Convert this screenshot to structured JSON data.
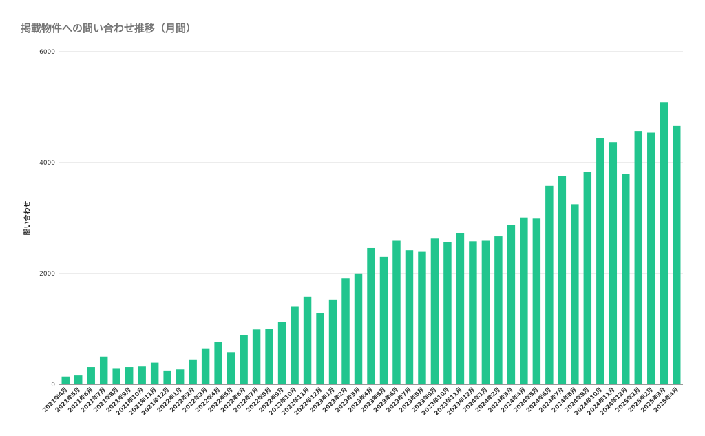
{
  "chart_data": {
    "type": "bar",
    "title": "掲載物件への問い合わせ推移（月間）",
    "xlabel": "",
    "ylabel": "問い合わせ",
    "ylim": [
      0,
      6000
    ],
    "yticks": [
      0,
      2000,
      4000,
      6000
    ],
    "grid": true,
    "bar_color": "#21c58e",
    "categories": [
      "2021年4月",
      "2021年5月",
      "2021年6月",
      "2021年7月",
      "2021年8月",
      "2021年9月",
      "2021年10月",
      "2021年11月",
      "2021年12月",
      "2022年1月",
      "2022年2月",
      "2022年3月",
      "2022年4月",
      "2022年5月",
      "2022年6月",
      "2022年7月",
      "2022年8月",
      "2022年9月",
      "2022年10月",
      "2022年11月",
      "2022年12月",
      "2023年1月",
      "2023年2月",
      "2023年3月",
      "2023年4月",
      "2023年5月",
      "2023年6月",
      "2023年7月",
      "2023年8月",
      "2023年9月",
      "2023年10月",
      "2023年11月",
      "2023年12月",
      "2024年1月",
      "2024年2月",
      "2024年3月",
      "2024年4月",
      "2024年5月",
      "2024年6月",
      "2024年7月",
      "2024年8月",
      "2024年9月",
      "2024年10月",
      "2024年11月",
      "2024年12月",
      "2025年1月",
      "2025年2月",
      "2025年3月",
      "2025年4月"
    ],
    "values": [
      140,
      160,
      310,
      500,
      280,
      310,
      320,
      390,
      250,
      270,
      450,
      650,
      760,
      580,
      890,
      990,
      1000,
      1120,
      1410,
      1580,
      1280,
      1530,
      1910,
      1990,
      2460,
      2300,
      2590,
      2420,
      2390,
      2630,
      2570,
      2730,
      2580,
      2590,
      2670,
      2880,
      3010,
      2990,
      3580,
      3760,
      3250,
      3830,
      4440,
      4370,
      3800,
      4570,
      4540,
      5090,
      4660
    ]
  }
}
